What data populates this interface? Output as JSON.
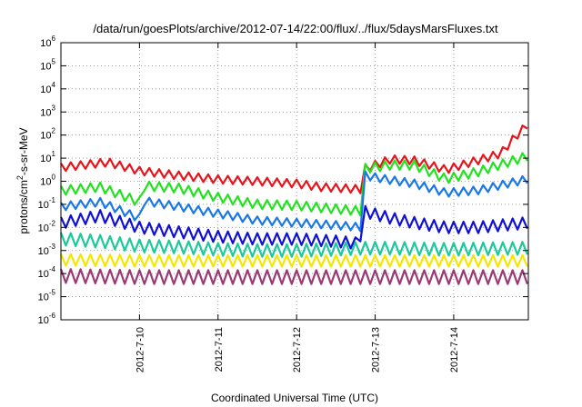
{
  "chart_data": {
    "type": "line",
    "title": "/data/run/goesPlots/archive/2012-07-14/22:00/flux/../flux/5daysMarsFluxes.txt",
    "xlabel": "Coordinated Universal Time (UTC)",
    "ylabel": {
      "prefix": "protons/cm",
      "sup": "2",
      "suffix": "-s-sr-MeV"
    },
    "yscale": "log",
    "ylim_exp": [
      -6,
      6
    ],
    "y_ticks": [
      {
        "base": "10",
        "exp": "6"
      },
      {
        "base": "10",
        "exp": "5"
      },
      {
        "base": "10",
        "exp": "4"
      },
      {
        "base": "10",
        "exp": "3"
      },
      {
        "base": "10",
        "exp": "2"
      },
      {
        "base": "10",
        "exp": "1"
      },
      {
        "base": "10",
        "exp": "0"
      },
      {
        "base": "10",
        "exp": "-1"
      },
      {
        "base": "10",
        "exp": "-2"
      },
      {
        "base": "10",
        "exp": "-3"
      },
      {
        "base": "10",
        "exp": "-4"
      },
      {
        "base": "10",
        "exp": "-5"
      },
      {
        "base": "10",
        "exp": "-6"
      }
    ],
    "xlim_days": [
      9.0,
      14.95
    ],
    "x_ticks": [
      {
        "label": "2012-7-10",
        "day": 10
      },
      {
        "label": "2012-7-11",
        "day": 11
      },
      {
        "label": "2012-7-12",
        "day": 12
      },
      {
        "label": "2012-7-13",
        "day": 13
      },
      {
        "label": "2012-7-14",
        "day": 14
      }
    ],
    "grid": true,
    "series": [
      {
        "color": "#e8141b",
        "sawtooth": 0.35,
        "points": [
          [
            9.0,
            0.6
          ],
          [
            9.6,
            0.82
          ],
          [
            10.0,
            0.45
          ],
          [
            10.5,
            0.25
          ],
          [
            11.0,
            0.08
          ],
          [
            11.5,
            0.0
          ],
          [
            12.0,
            -0.1
          ],
          [
            12.3,
            -0.25
          ],
          [
            12.85,
            -0.35
          ],
          [
            12.87,
            0.55
          ],
          [
            13.2,
            0.95
          ],
          [
            13.5,
            0.9
          ],
          [
            13.9,
            0.5
          ],
          [
            14.3,
            0.9
          ],
          [
            14.6,
            1.2
          ],
          [
            14.75,
            1.8
          ],
          [
            14.95,
            2.5
          ]
        ]
      },
      {
        "color": "#22e21f",
        "sawtooth": 0.4,
        "points": [
          [
            9.0,
            -0.4
          ],
          [
            9.5,
            -0.25
          ],
          [
            10.0,
            -0.9
          ],
          [
            10.05,
            -0.2
          ],
          [
            10.5,
            -0.3
          ],
          [
            11.0,
            -0.7
          ],
          [
            11.5,
            -1.0
          ],
          [
            12.0,
            -1.05
          ],
          [
            12.5,
            -1.2
          ],
          [
            12.85,
            -1.3
          ],
          [
            12.87,
            0.55
          ],
          [
            13.2,
            0.7
          ],
          [
            13.5,
            0.7
          ],
          [
            13.9,
            0.1
          ],
          [
            14.3,
            0.4
          ],
          [
            14.95,
            1.1
          ]
        ]
      },
      {
        "color": "#1a78e6",
        "sawtooth": 0.35,
        "points": [
          [
            9.0,
            -1.1
          ],
          [
            9.5,
            -0.9
          ],
          [
            10.0,
            -1.6
          ],
          [
            10.05,
            -0.85
          ],
          [
            10.5,
            -1.1
          ],
          [
            11.0,
            -1.4
          ],
          [
            11.5,
            -1.7
          ],
          [
            12.0,
            -1.8
          ],
          [
            12.5,
            -1.9
          ],
          [
            12.85,
            -2.0
          ],
          [
            12.87,
            0.25
          ],
          [
            13.2,
            0.05
          ],
          [
            13.5,
            -0.1
          ],
          [
            13.9,
            -0.5
          ],
          [
            14.3,
            -0.4
          ],
          [
            14.95,
            0.1
          ]
        ]
      },
      {
        "color": "#1111d6",
        "sawtooth": 0.5,
        "points": [
          [
            9.0,
            -1.8
          ],
          [
            9.5,
            -1.5
          ],
          [
            10.0,
            -2.0
          ],
          [
            10.5,
            -2.2
          ],
          [
            11.0,
            -2.4
          ],
          [
            11.5,
            -2.5
          ],
          [
            12.0,
            -2.5
          ],
          [
            12.5,
            -2.6
          ],
          [
            12.8,
            -2.7
          ],
          [
            12.85,
            -1.3
          ],
          [
            13.2,
            -1.6
          ],
          [
            13.5,
            -1.8
          ],
          [
            13.9,
            -2.0
          ],
          [
            14.3,
            -2.0
          ],
          [
            14.95,
            -1.8
          ]
        ]
      },
      {
        "color": "#1cc99a",
        "sawtooth": 0.55,
        "points": [
          [
            9.0,
            -2.5
          ],
          [
            9.5,
            -2.6
          ],
          [
            10.0,
            -2.8
          ],
          [
            10.5,
            -2.85
          ],
          [
            11.0,
            -2.95
          ],
          [
            11.5,
            -3.0
          ],
          [
            12.0,
            -3.0
          ],
          [
            12.5,
            -2.95
          ],
          [
            12.85,
            -2.9
          ],
          [
            13.2,
            -2.9
          ],
          [
            13.9,
            -2.95
          ],
          [
            14.95,
            -2.9
          ]
        ]
      },
      {
        "color": "#f5e600",
        "sawtooth": 0.5,
        "points": [
          [
            9.0,
            -3.4
          ],
          [
            10.0,
            -3.45
          ],
          [
            11.0,
            -3.45
          ],
          [
            12.0,
            -3.45
          ],
          [
            13.0,
            -3.45
          ],
          [
            14.0,
            -3.45
          ],
          [
            14.95,
            -3.45
          ]
        ]
      },
      {
        "color": "#9b3a74",
        "sawtooth": 0.6,
        "points": [
          [
            9.0,
            -4.1
          ],
          [
            10.0,
            -4.15
          ],
          [
            11.0,
            -4.15
          ],
          [
            12.0,
            -4.15
          ],
          [
            13.0,
            -4.15
          ],
          [
            14.0,
            -4.15
          ],
          [
            14.95,
            -4.15
          ]
        ]
      }
    ]
  }
}
